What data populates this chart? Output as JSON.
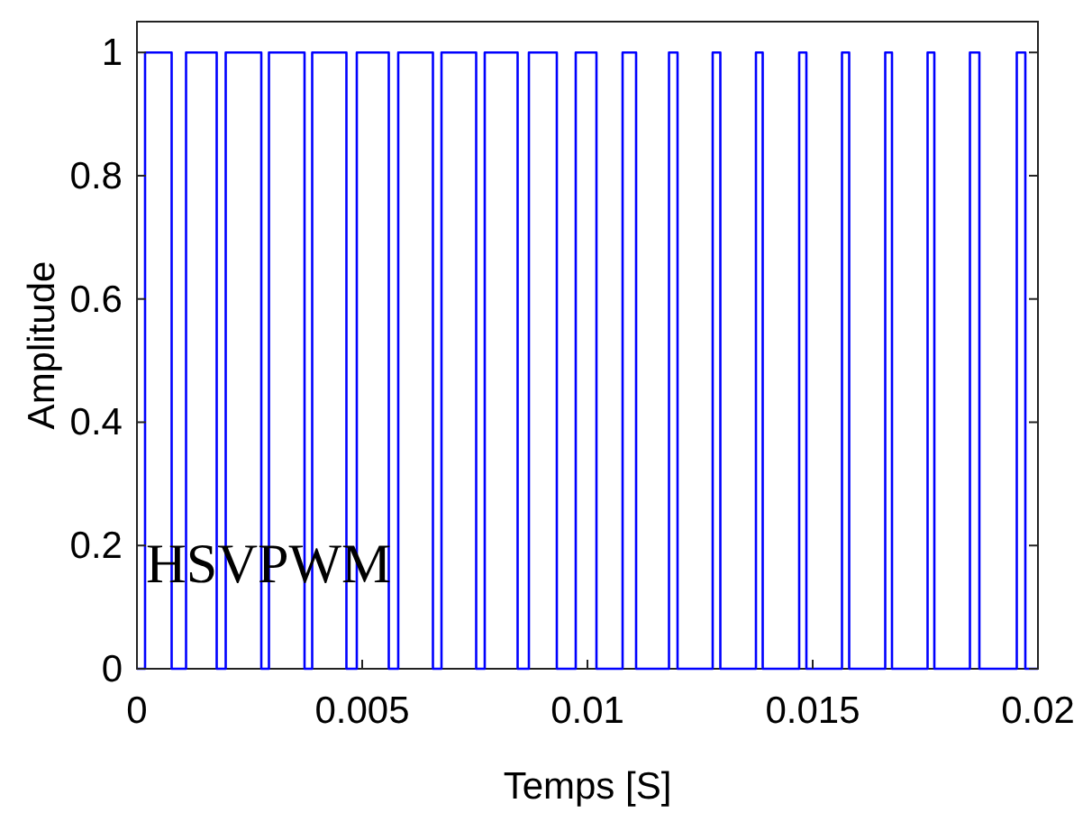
{
  "chart_data": {
    "type": "step",
    "xlabel": "Temps [S]",
    "ylabel": "Amplitude",
    "annotations": [
      "HSVPWM"
    ],
    "xlim": [
      0,
      0.02
    ],
    "ylim": [
      0,
      1.05
    ],
    "xticks": [
      0,
      0.005,
      0.01,
      0.015,
      0.02
    ],
    "yticks": [
      0,
      0.2,
      0.4,
      0.6,
      0.8,
      1
    ],
    "grid": false,
    "line_style": "solid",
    "series": [
      {
        "color": "#0000ff",
        "x": [
          0,
          0.00018,
          0.00077,
          0.00109,
          0.00177,
          0.00197,
          0.00276,
          0.00293,
          0.00372,
          0.00389,
          0.00465,
          0.00488,
          0.00559,
          0.0058,
          0.00657,
          0.00676,
          0.00753,
          0.00772,
          0.00845,
          0.0087,
          0.00932,
          0.00974,
          0.0102,
          0.01078,
          0.01108,
          0.01181,
          0.012,
          0.01278,
          0.01295,
          0.01374,
          0.01389,
          0.0147,
          0.01486,
          0.01565,
          0.01581,
          0.01661,
          0.01676,
          0.01755,
          0.0177,
          0.01849,
          0.0187,
          0.01953,
          0.01972,
          0.02
        ],
        "values": [
          0,
          1,
          0,
          1,
          0,
          1,
          0,
          1,
          0,
          1,
          0,
          1,
          0,
          1,
          0,
          1,
          0,
          1,
          0,
          1,
          0,
          1,
          0,
          1,
          0,
          1,
          0,
          1,
          0,
          1,
          0,
          1,
          0,
          1,
          0,
          1,
          0,
          1,
          0,
          1,
          0,
          1,
          0,
          0
        ]
      }
    ]
  }
}
